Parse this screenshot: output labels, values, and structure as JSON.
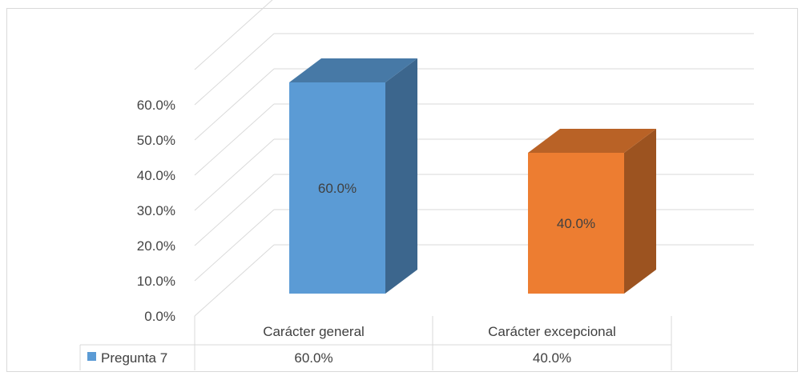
{
  "chart_data": {
    "type": "bar",
    "categories": [
      "Carácter general",
      "Carácter excepcional"
    ],
    "series": [
      {
        "name": "Pregunta 7",
        "values": [
          60.0,
          40.0
        ]
      }
    ],
    "value_labels": [
      "60.0%",
      "40.0%"
    ],
    "y_ticks": [
      "0.0%",
      "10.0%",
      "20.0%",
      "30.0%",
      "40.0%",
      "50.0%",
      "60.0%"
    ],
    "ylim": [
      0,
      60
    ],
    "grid": true,
    "three_d": true,
    "legend": "data table below chart",
    "colors": [
      "#5B9BD5",
      "#ED7D31"
    ],
    "table": {
      "series_label": "Pregunta 7",
      "values": [
        "60.0%",
        "40.0%"
      ]
    }
  }
}
